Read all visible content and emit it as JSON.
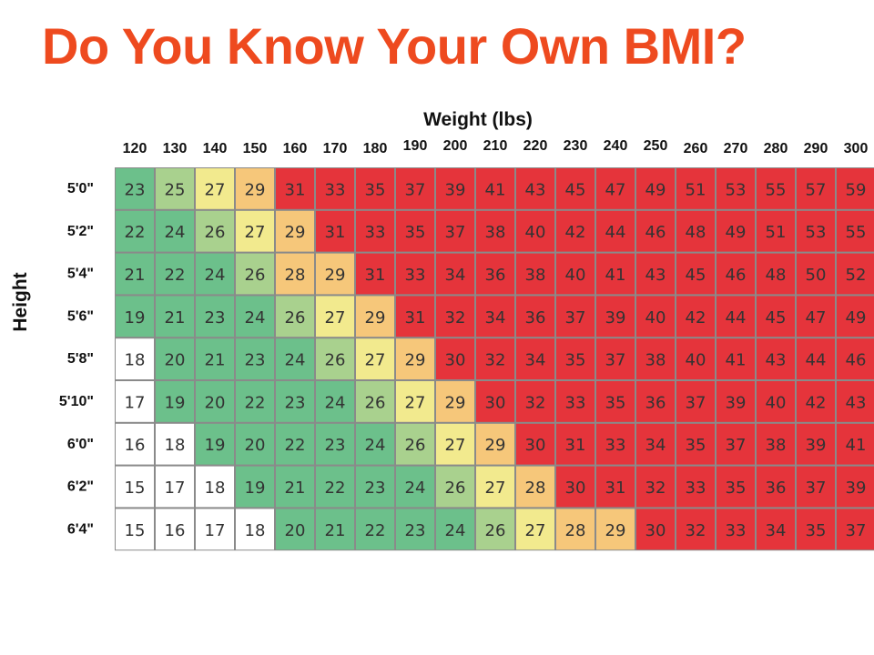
{
  "title": "Do You Know Your Own BMI?",
  "chart_data": {
    "type": "heatmap",
    "title": "Do You Know Your Own BMI?",
    "xlabel": "Weight (lbs)",
    "ylabel": "Height",
    "x": [
      120,
      130,
      140,
      150,
      160,
      170,
      180,
      190,
      200,
      210,
      220,
      230,
      240,
      250,
      260,
      270,
      280,
      290,
      300
    ],
    "x_labels": [
      "120",
      "130",
      "140",
      "150",
      "160",
      "170",
      "180",
      "190",
      "200",
      "210",
      "220",
      "230",
      "240",
      "250",
      "260",
      "270",
      "280",
      "290",
      "300"
    ],
    "y_labels": [
      "5'0\"",
      "5'2\"",
      "5'4\"",
      "5'6\"",
      "5'8\"",
      "5'10\"",
      "6'0\"",
      "6'2\"",
      "6'4\""
    ],
    "values": [
      [
        23,
        25,
        27,
        29,
        31,
        33,
        35,
        37,
        39,
        41,
        43,
        45,
        47,
        49,
        51,
        53,
        55,
        57,
        59
      ],
      [
        22,
        24,
        26,
        27,
        29,
        31,
        33,
        35,
        37,
        38,
        40,
        42,
        44,
        46,
        48,
        49,
        51,
        53,
        55
      ],
      [
        21,
        22,
        24,
        26,
        28,
        29,
        31,
        33,
        34,
        36,
        38,
        40,
        41,
        43,
        45,
        46,
        48,
        50,
        52
      ],
      [
        19,
        21,
        23,
        24,
        26,
        27,
        29,
        31,
        32,
        34,
        36,
        37,
        39,
        40,
        42,
        44,
        45,
        47,
        49
      ],
      [
        18,
        20,
        21,
        23,
        24,
        26,
        27,
        29,
        30,
        32,
        34,
        35,
        37,
        38,
        40,
        41,
        43,
        44,
        46
      ],
      [
        17,
        19,
        20,
        22,
        23,
        24,
        26,
        27,
        29,
        30,
        32,
        33,
        35,
        36,
        37,
        39,
        40,
        42,
        43
      ],
      [
        16,
        18,
        19,
        20,
        22,
        23,
        24,
        26,
        27,
        29,
        30,
        31,
        33,
        34,
        35,
        37,
        38,
        39,
        41
      ],
      [
        15,
        17,
        18,
        19,
        21,
        22,
        23,
        24,
        26,
        27,
        28,
        30,
        31,
        32,
        33,
        35,
        36,
        37,
        39
      ],
      [
        15,
        16,
        17,
        18,
        20,
        21,
        22,
        23,
        24,
        26,
        27,
        28,
        29,
        30,
        32,
        33,
        34,
        35,
        37
      ]
    ],
    "colors": {
      "underweight": "#ffffff",
      "healthy": "#6cc08b",
      "healthy_upper": "#a9d18e",
      "overweight_low": "#f2ea8e",
      "overweight_high": "#f6c77a",
      "obese": "#e5343b"
    },
    "grid": true
  }
}
